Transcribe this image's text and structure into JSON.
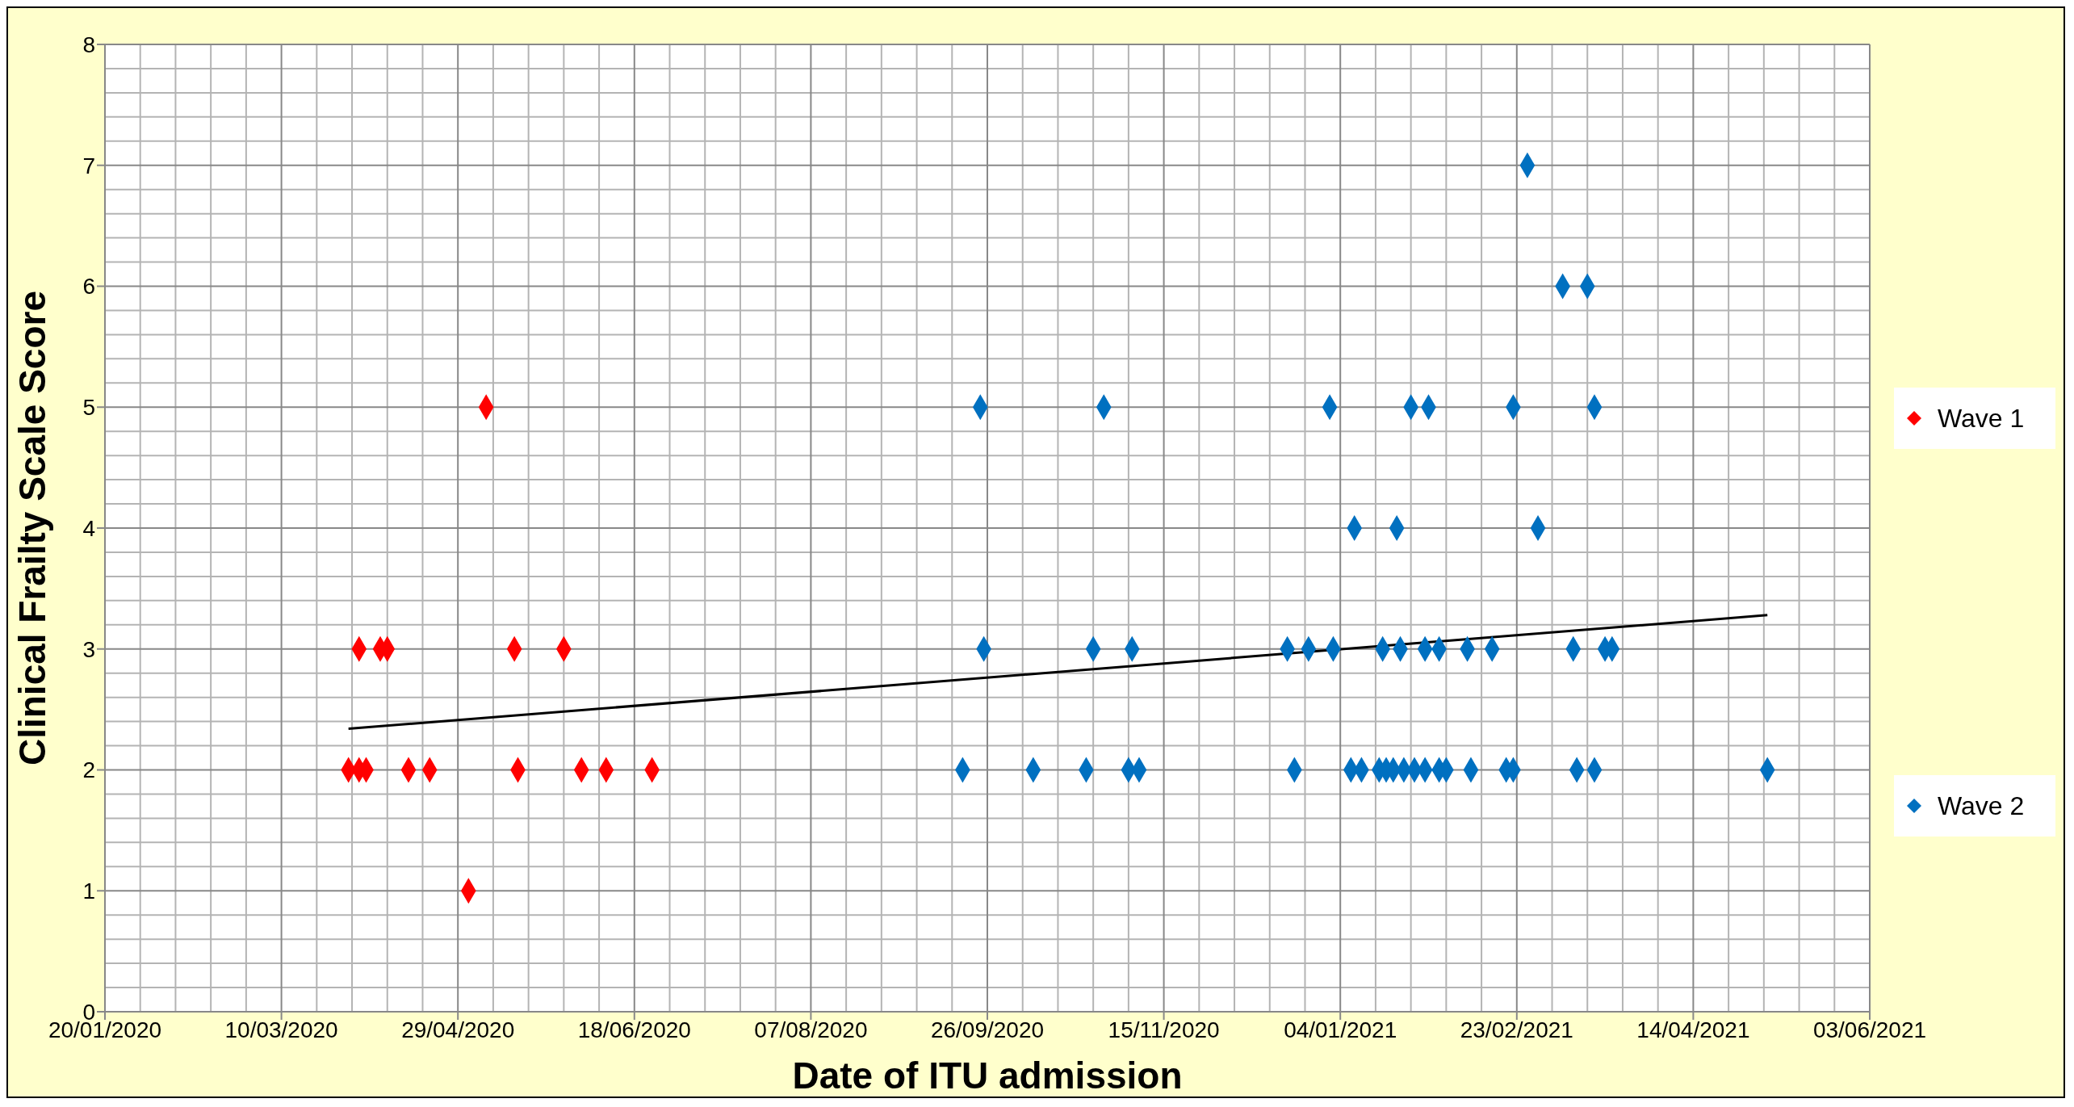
{
  "chart_data": {
    "type": "scatter",
    "xlabel": "Date of ITU admission",
    "ylabel": "Clinical Frailty Scale Score",
    "xlim": [
      "2020-01-20",
      "2021-06-03"
    ],
    "xticks": [
      {
        "value": "2020-01-20",
        "label": "20/01/2020"
      },
      {
        "value": "2020-03-10",
        "label": "10/03/2020"
      },
      {
        "value": "2020-04-29",
        "label": "29/04/2020"
      },
      {
        "value": "2020-06-18",
        "label": "18/06/2020"
      },
      {
        "value": "2020-08-07",
        "label": "07/08/2020"
      },
      {
        "value": "2020-09-26",
        "label": "26/09/2020"
      },
      {
        "value": "2020-11-15",
        "label": "15/11/2020"
      },
      {
        "value": "2021-01-04",
        "label": "04/01/2021"
      },
      {
        "value": "2021-02-23",
        "label": "23/02/2021"
      },
      {
        "value": "2021-04-14",
        "label": "14/04/2021"
      },
      {
        "value": "2021-06-03",
        "label": "03/06/2021"
      }
    ],
    "ylim": [
      0,
      8
    ],
    "yticks": [
      0,
      1,
      2,
      3,
      4,
      5,
      6,
      7,
      8
    ],
    "grid": true,
    "legend": "right",
    "marker": "diamond",
    "series": [
      {
        "name": "Wave 1",
        "color": "#ff0000",
        "x": [
          "2020-05-07",
          "2020-04-01",
          "2020-04-07",
          "2020-04-09",
          "2020-05-15",
          "2020-05-29",
          "2020-03-29",
          "2020-04-01",
          "2020-04-03",
          "2020-04-15",
          "2020-04-21",
          "2020-05-16",
          "2020-06-03",
          "2020-06-10",
          "2020-06-23",
          "2020-05-02"
        ],
        "values": [
          5,
          3,
          3,
          3,
          3,
          3,
          2,
          2,
          2,
          2,
          2,
          2,
          2,
          2,
          2,
          1
        ]
      },
      {
        "name": "Wave 2",
        "color": "#0070c0",
        "x": [
          "2020-09-24",
          "2020-10-29",
          "2021-01-01",
          "2021-01-24",
          "2021-01-29",
          "2021-02-22",
          "2021-03-17",
          "2021-02-26",
          "2021-03-08",
          "2021-03-15",
          "2021-01-08",
          "2021-01-20",
          "2021-03-01",
          "2020-09-25",
          "2020-10-26",
          "2020-11-06",
          "2020-12-20",
          "2020-12-26",
          "2021-01-02",
          "2021-01-16",
          "2021-01-21",
          "2021-01-28",
          "2021-02-01",
          "2021-02-09",
          "2021-02-16",
          "2021-03-11",
          "2021-03-20",
          "2021-03-22",
          "2020-09-19",
          "2020-10-09",
          "2020-10-24",
          "2020-11-05",
          "2020-11-08",
          "2020-12-22",
          "2021-01-07",
          "2021-01-10",
          "2021-01-15",
          "2021-01-17",
          "2021-01-19",
          "2021-01-22",
          "2021-01-25",
          "2021-01-28",
          "2021-02-01",
          "2021-02-03",
          "2021-02-10",
          "2021-02-20",
          "2021-02-22",
          "2021-03-12",
          "2021-03-17",
          "2021-05-05"
        ],
        "values": [
          5,
          5,
          5,
          5,
          5,
          5,
          5,
          7,
          6,
          6,
          4,
          4,
          4,
          3,
          3,
          3,
          3,
          3,
          3,
          3,
          3,
          3,
          3,
          3,
          3,
          3,
          3,
          3,
          2,
          2,
          2,
          2,
          2,
          2,
          2,
          2,
          2,
          2,
          2,
          2,
          2,
          2,
          2,
          2,
          2,
          2,
          2,
          2,
          2,
          2
        ]
      },
      {
        "type": "line",
        "marker": "none",
        "color": "#000000",
        "x": [
          "2020-03-29",
          "2021-05-05"
        ],
        "values": [
          2.34,
          3.28
        ]
      }
    ]
  }
}
